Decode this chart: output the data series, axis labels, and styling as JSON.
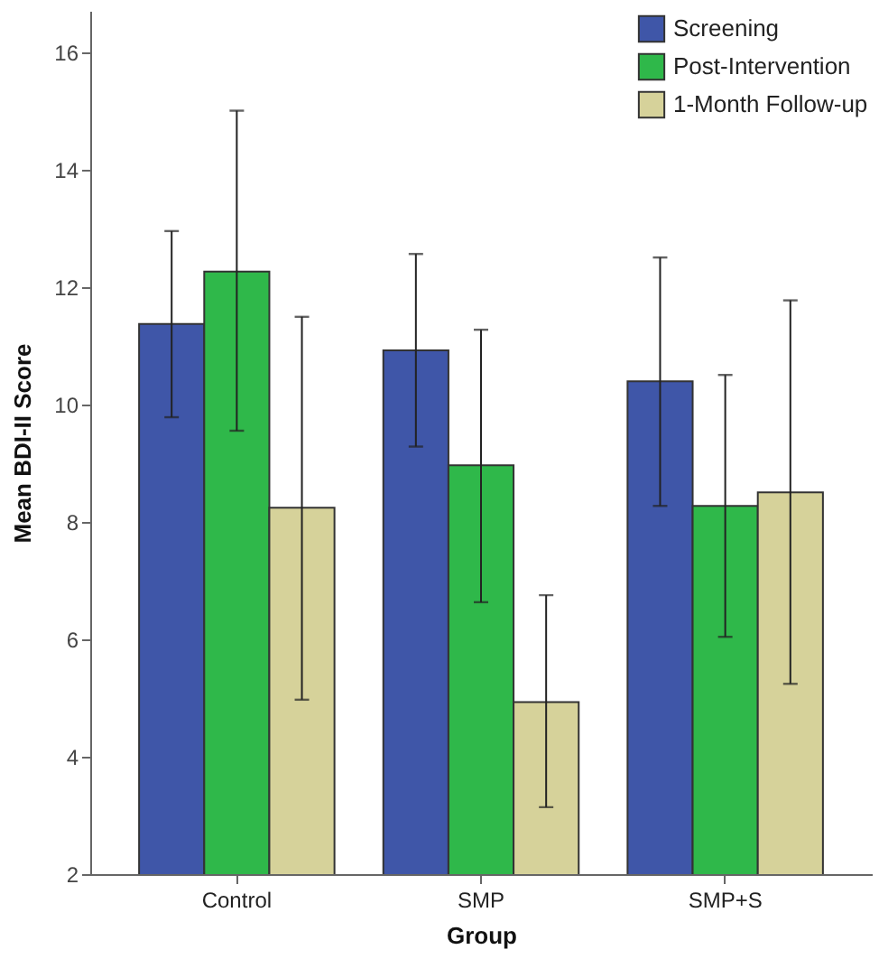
{
  "chart_data": {
    "type": "bar",
    "xlabel": "Group",
    "ylabel": "Mean BDI-II Score",
    "categories": [
      "Control",
      "SMP",
      "SMP+S"
    ],
    "series": [
      {
        "name": "Screening",
        "color": "#3f56a8",
        "values": [
          11.37,
          10.92,
          10.39
        ],
        "errors": [
          [
            9.78,
            12.95
          ],
          [
            9.28,
            12.56
          ],
          [
            8.27,
            12.5
          ]
        ]
      },
      {
        "name": "Post-Intervention",
        "color": "#2fb84a",
        "values": [
          12.26,
          8.96,
          8.27
        ],
        "errors": [
          [
            9.55,
            15.0
          ],
          [
            6.63,
            11.27
          ],
          [
            6.04,
            10.5
          ]
        ]
      },
      {
        "name": "1-Month Follow-up",
        "color": "#d6d29a",
        "values": [
          8.24,
          4.93,
          8.5
        ],
        "errors": [
          [
            4.97,
            11.49
          ],
          [
            3.14,
            6.75
          ],
          [
            5.24,
            11.77
          ]
        ]
      }
    ],
    "ylim": [
      2,
      16.7
    ],
    "yticks": [
      2,
      4,
      6,
      8,
      10,
      12,
      14,
      16
    ],
    "grid": false,
    "legend": "top right"
  }
}
